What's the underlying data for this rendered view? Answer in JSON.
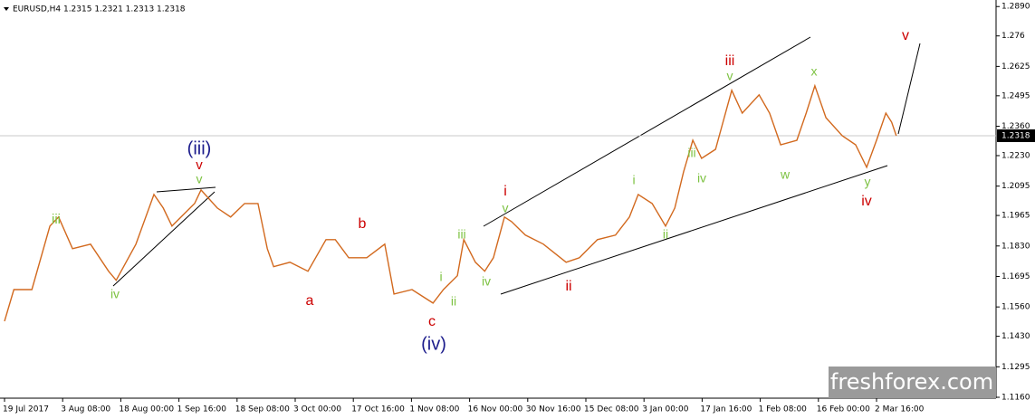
{
  "chart_data": {
    "type": "line",
    "title": "EURUSD,H4  1.2315 1.2321 1.2313 1.2318",
    "watermark": "freshforex.com",
    "last_price": 1.2318,
    "color": "#d2691e",
    "x": [
      0,
      0.16,
      0.47,
      0.78,
      0.93,
      1.17,
      1.48,
      1.79,
      1.92,
      2.26,
      2.57,
      2.73,
      2.88,
      3.27,
      3.38,
      3.66,
      3.89,
      4.13,
      4.36,
      4.52,
      4.63,
      4.91,
      5.22,
      5.53,
      5.69,
      5.92,
      6.23,
      6.54,
      6.7,
      7.01,
      7.37,
      7.55,
      7.79,
      7.9,
      8.1,
      8.26,
      8.41,
      8.6,
      8.72,
      8.96,
      9.27,
      9.66,
      9.89,
      10.2,
      10.51,
      10.75,
      10.9,
      11.14,
      11.37,
      11.53,
      11.68,
      11.84,
      11.99,
      12.23,
      12.38,
      12.51,
      12.69,
      12.98,
      13.16,
      13.35,
      13.63,
      13.79,
      13.94,
      14.13,
      14.41,
      14.64,
      14.83,
      15.0,
      15.16,
      15.26,
      15.34
    ],
    "values": [
      1.1497,
      1.1637,
      1.1637,
      1.1918,
      1.1958,
      1.1818,
      1.1838,
      1.1718,
      1.1678,
      1.1838,
      1.2058,
      1.1998,
      1.1918,
      1.2018,
      1.2078,
      1.1998,
      1.1958,
      1.2018,
      1.2018,
      1.1818,
      1.1738,
      1.1758,
      1.1718,
      1.1858,
      1.1858,
      1.1778,
      1.1778,
      1.1838,
      1.1617,
      1.1637,
      1.1577,
      1.1637,
      1.1698,
      1.1858,
      1.1758,
      1.1718,
      1.1778,
      1.1958,
      1.1938,
      1.1878,
      1.1838,
      1.1758,
      1.1778,
      1.1858,
      1.1878,
      1.1958,
      1.2058,
      1.2018,
      1.1918,
      1.1998,
      1.2158,
      1.2298,
      1.2218,
      1.2258,
      1.2398,
      1.2519,
      1.2418,
      1.2499,
      1.2418,
      1.2278,
      1.2298,
      1.2418,
      1.2539,
      1.2398,
      1.2318,
      1.2278,
      1.2178,
      1.2298,
      1.2418,
      1.2378,
      1.2318
    ],
    "xlim": [
      0,
      17.06
    ],
    "xticks": [
      {
        "value": 0,
        "label": "19 Jul 2017"
      },
      {
        "value": 1,
        "label": "3 Aug 08:00"
      },
      {
        "value": 2,
        "label": "18 Aug 00:00"
      },
      {
        "value": 3,
        "label": "1 Sep 16:00"
      },
      {
        "value": 4,
        "label": "18 Sep 08:00"
      },
      {
        "value": 5,
        "label": "3 Oct 00:00"
      },
      {
        "value": 6,
        "label": "17 Oct 16:00"
      },
      {
        "value": 7,
        "label": "1 Nov 08:00"
      },
      {
        "value": 8,
        "label": "16 Nov 00:00"
      },
      {
        "value": 9,
        "label": "30 Nov 16:00"
      },
      {
        "value": 10,
        "label": "15 Dec 08:00"
      },
      {
        "value": 11,
        "label": "3 Jan 00:00"
      },
      {
        "value": 12,
        "label": "17 Jan 16:00"
      },
      {
        "value": 13,
        "label": "1 Feb 08:00"
      },
      {
        "value": 14,
        "label": "16 Feb 00:00"
      },
      {
        "value": 15,
        "label": "2 Mar 16:00"
      }
    ],
    "ylim": [
      1.1156,
      1.2903
    ],
    "yticks": [
      {
        "value": 1.289,
        "label": "1.2890"
      },
      1.276,
      1.2625,
      1.2495,
      {
        "value": 1.236,
        "label": "1.2360"
      },
      {
        "value": 1.223,
        "label": "1.2230"
      },
      1.2095,
      1.1965,
      {
        "value": 1.183,
        "label": "1.1830"
      },
      1.1695,
      {
        "value": 1.156,
        "label": "1.1560"
      },
      {
        "value": 1.143,
        "label": "1.1430"
      },
      1.1295,
      {
        "value": 1.116,
        "label": "1.1160"
      }
    ],
    "annotations": [
      {
        "text": "iii",
        "color": "#7dc242"
      },
      {
        "text": "(iii)",
        "color": "#1c1c8c"
      },
      {
        "text": "v",
        "color": "#cc0000"
      },
      {
        "text": "v",
        "color": "#7dc242"
      },
      {
        "text": "iv",
        "color": "#7dc242"
      },
      {
        "text": "a",
        "color": "#cc0000"
      },
      {
        "text": "b",
        "color": "#cc0000"
      },
      {
        "text": "c",
        "color": "#cc0000"
      },
      {
        "text": "(iv)",
        "color": "#1c1c8c"
      },
      {
        "text": "i",
        "color": "#7dc242"
      },
      {
        "text": "ii",
        "color": "#7dc242"
      },
      {
        "text": "iii",
        "color": "#7dc242"
      },
      {
        "text": "iv",
        "color": "#7dc242"
      },
      {
        "text": "i",
        "color": "#cc0000"
      },
      {
        "text": "v",
        "color": "#7dc242"
      },
      {
        "text": "ii",
        "color": "#cc0000"
      },
      {
        "text": "i",
        "color": "#7dc242"
      },
      {
        "text": "ii",
        "color": "#7dc242"
      },
      {
        "text": "iii",
        "color": "#7dc242"
      },
      {
        "text": "iv",
        "color": "#7dc242"
      },
      {
        "text": "iii",
        "color": "#cc0000"
      },
      {
        "text": "v",
        "color": "#7dc242"
      },
      {
        "text": "w",
        "color": "#7dc242"
      },
      {
        "text": "x",
        "color": "#7dc242"
      },
      {
        "text": "y",
        "color": "#7dc242"
      },
      {
        "text": "iv",
        "color": "#cc0000"
      },
      {
        "text": "v",
        "color": "#cc0000"
      }
    ]
  }
}
